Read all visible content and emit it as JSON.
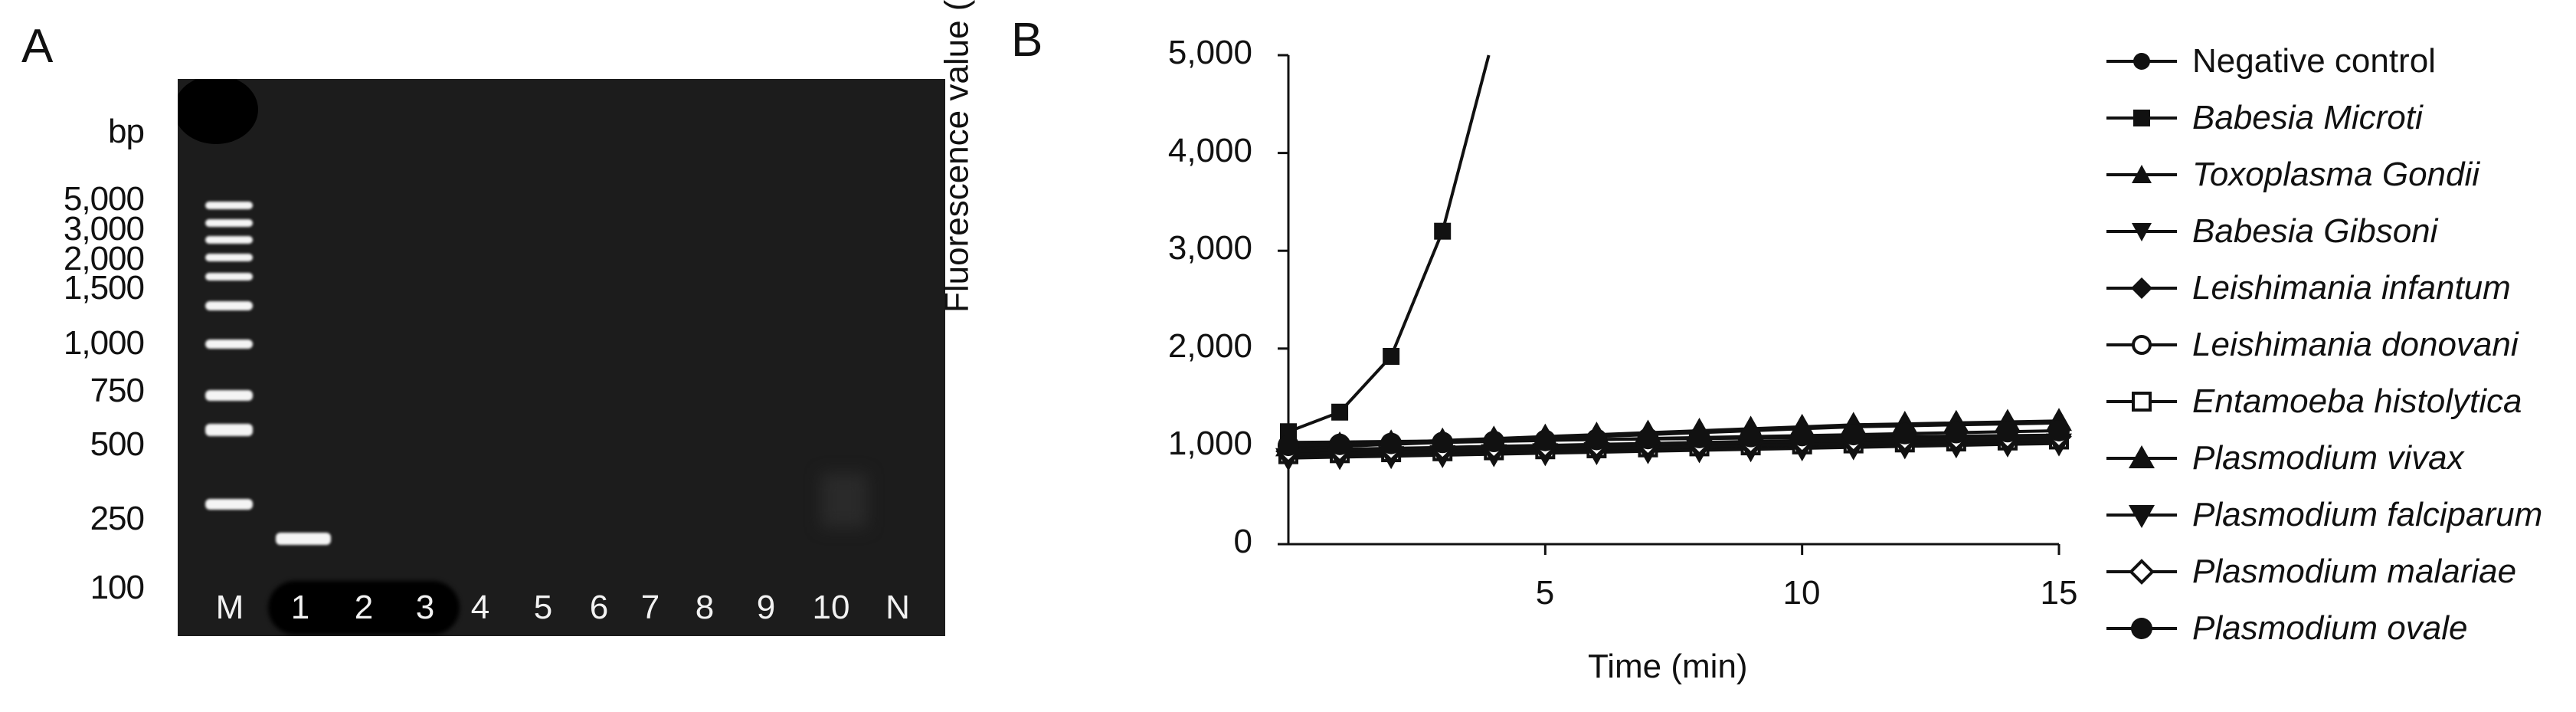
{
  "panels": {
    "A": "A",
    "B": "B"
  },
  "gel": {
    "unit_label": "bp",
    "marker_sizes": [
      "5,000",
      "3,000",
      "2,000",
      "1,500",
      "1,000",
      "750",
      "500",
      "250",
      "100"
    ],
    "lanes": [
      "M",
      "1",
      "2",
      "3",
      "4",
      "5",
      "6",
      "7",
      "8",
      "9",
      "10",
      "N"
    ],
    "bands": [
      {
        "lane": "1",
        "size_bp": 190,
        "description": "specific amplification band"
      }
    ]
  },
  "chart_data": {
    "type": "line",
    "title": "",
    "xlabel": "Time (min)",
    "ylabel": "Fluorescence value (mV)",
    "xlim": [
      0,
      15
    ],
    "ylim": [
      0,
      5000
    ],
    "xticks": [
      "5",
      "10",
      "15"
    ],
    "yticks": [
      "0",
      "1,000",
      "2,000",
      "3,000",
      "4,000",
      "5,000"
    ],
    "legend_position": "right",
    "series": [
      {
        "name": "Negative control",
        "italic": false,
        "marker": "circle",
        "x": [
          0,
          1,
          2,
          3,
          4,
          5,
          6,
          7,
          8,
          9,
          10,
          11,
          12,
          13,
          14,
          15
        ],
        "y": [
          1040,
          1045,
          1050,
          1055,
          1060,
          1065,
          1070,
          1075,
          1080,
          1085,
          1090,
          1095,
          1100,
          1105,
          1110,
          1115
        ]
      },
      {
        "name": "Babesia Microti",
        "italic": true,
        "marker": "square",
        "x": [
          0,
          1,
          2,
          3,
          3.9
        ],
        "y": [
          1150,
          1350,
          1920,
          3200,
          5000
        ]
      },
      {
        "name": "Toxoplasma Gondii",
        "italic": true,
        "marker": "triangle-up",
        "x": [
          0,
          1,
          2,
          3,
          4,
          5,
          6,
          7,
          8,
          9,
          10,
          11,
          12,
          13,
          14,
          15
        ],
        "y": [
          980,
          1000,
          1020,
          1040,
          1060,
          1080,
          1100,
          1120,
          1140,
          1160,
          1180,
          1200,
          1210,
          1220,
          1230,
          1240
        ]
      },
      {
        "name": "Babesia Gibsoni",
        "italic": true,
        "marker": "triangle-down",
        "x": [
          0,
          1,
          2,
          3,
          4,
          5,
          6,
          7,
          8,
          9,
          10,
          11,
          12,
          13,
          14,
          15
        ],
        "y": [
          900,
          910,
          920,
          930,
          940,
          950,
          960,
          970,
          980,
          990,
          1000,
          1010,
          1020,
          1030,
          1040,
          1050
        ]
      },
      {
        "name": "Leishimania infantum",
        "italic": true,
        "marker": "diamond",
        "x": [
          0,
          1,
          2,
          3,
          4,
          5,
          6,
          7,
          8,
          9,
          10,
          11,
          12,
          13,
          14,
          15
        ],
        "y": [
          940,
          950,
          960,
          970,
          980,
          990,
          1000,
          1010,
          1020,
          1030,
          1040,
          1050,
          1060,
          1070,
          1080,
          1090
        ]
      },
      {
        "name": "Leishimania donovani",
        "italic": true,
        "marker": "circle-open",
        "x": [
          0,
          1,
          2,
          3,
          4,
          5,
          6,
          7,
          8,
          9,
          10,
          11,
          12,
          13,
          14,
          15
        ],
        "y": [
          960,
          970,
          980,
          990,
          1000,
          1010,
          1020,
          1030,
          1040,
          1050,
          1060,
          1070,
          1080,
          1090,
          1100,
          1110
        ]
      },
      {
        "name": "Entamoeba histolytica",
        "italic": true,
        "marker": "square-open",
        "x": [
          0,
          1,
          2,
          3,
          4,
          5,
          6,
          7,
          8,
          9,
          10,
          11,
          12,
          13,
          14,
          15
        ],
        "y": [
          920,
          930,
          940,
          950,
          960,
          970,
          980,
          990,
          1000,
          1010,
          1020,
          1030,
          1040,
          1050,
          1060,
          1070
        ]
      },
      {
        "name": "Plasmodium vivax",
        "italic": true,
        "marker": "triangle-up-large",
        "x": [
          0,
          1,
          2,
          3,
          4,
          5,
          6,
          7,
          8,
          9,
          10,
          11,
          12,
          13,
          14,
          15
        ],
        "y": [
          1000,
          1020,
          1040,
          1060,
          1080,
          1100,
          1120,
          1140,
          1160,
          1180,
          1200,
          1220,
          1230,
          1240,
          1250,
          1260
        ]
      },
      {
        "name": "Plasmodium falciparum",
        "italic": true,
        "marker": "triangle-down-large",
        "x": [
          0,
          1,
          2,
          3,
          4,
          5,
          6,
          7,
          8,
          9,
          10,
          11,
          12,
          13,
          14,
          15
        ],
        "y": [
          880,
          890,
          900,
          910,
          920,
          930,
          940,
          950,
          960,
          970,
          980,
          990,
          1000,
          1010,
          1020,
          1030
        ]
      },
      {
        "name": "Plasmodium malariae",
        "italic": true,
        "marker": "diamond-open",
        "x": [
          0,
          1,
          2,
          3,
          4,
          5,
          6,
          7,
          8,
          9,
          10,
          11,
          12,
          13,
          14,
          15
        ],
        "y": [
          950,
          960,
          970,
          980,
          990,
          1000,
          1010,
          1020,
          1030,
          1040,
          1050,
          1060,
          1070,
          1080,
          1090,
          1100
        ]
      },
      {
        "name": "Plasmodium ovale",
        "italic": true,
        "marker": "circle-large",
        "x": [
          0,
          1,
          2,
          3,
          4,
          5,
          6,
          7,
          8,
          9,
          10,
          11,
          12,
          13,
          14,
          15
        ],
        "y": [
          1010,
          1020,
          1030,
          1040,
          1050,
          1060,
          1070,
          1080,
          1090,
          1100,
          1110,
          1120,
          1130,
          1140,
          1150,
          1160
        ]
      }
    ]
  }
}
